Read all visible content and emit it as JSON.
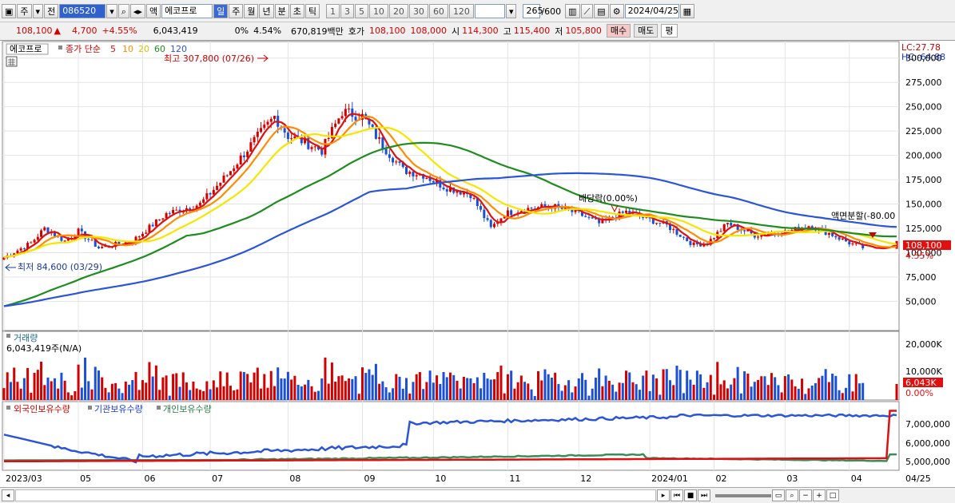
{
  "toolbar": {
    "period_select": "주",
    "prev_label": "전",
    "stock_code": "086520",
    "stock_label": "액",
    "stock_name": "에코프로",
    "period_buttons": [
      "일",
      "주",
      "월",
      "년",
      "분",
      "초",
      "틱"
    ],
    "interval_buttons": [
      "1",
      "3",
      "5",
      "10",
      "20",
      "30",
      "60",
      "120"
    ],
    "count": "265",
    "count_total": "/600",
    "date": "2024/04/25"
  },
  "info": {
    "price": "108,100",
    "change_arrow": "▲",
    "change": "4,700",
    "change_pct": "+4.55%",
    "volume": "6,043,419",
    "zero_pct": "0%",
    "turnover_pct": "4.54%",
    "amount": "670,819백만",
    "quote_label": "호가",
    "ask": "108,100",
    "bid": "108,000",
    "open_label": "시",
    "open": "114,300",
    "high_label": "고",
    "high": "115,400",
    "low_label": "저",
    "low": "105,800",
    "buy_label": "매수",
    "sell_label": "매도",
    "flat_label": "평"
  },
  "price_pane": {
    "legend_name": "에코프로",
    "legend_price": "종가 단순",
    "ma_labels": [
      "5",
      "10",
      "20",
      "60",
      "120"
    ],
    "high_annotation": "최고 307,800 (07/26)",
    "low_annotation": "최저 84,600 (03/29)",
    "dividend_annotation": "배당락(0.00%)",
    "split_annotation": "액면분할(-80.00",
    "lc": "LC:27.78",
    "hc": "HC:-64.88",
    "last_price_tag": "108,100",
    "last_pct_tag": "4.55%",
    "y_ticks": [
      "300,000",
      "275,000",
      "250,000",
      "225,000",
      "200,000",
      "175,000",
      "150,000",
      "125,000",
      "100,000",
      "75,000",
      "50,000"
    ]
  },
  "volume_pane": {
    "title": "거래량",
    "value": "6,043,419주(N/A)",
    "y_ticks": [
      "20,000K",
      "10,000K"
    ],
    "last_tag": "6,043K",
    "last_pct": "0.00%"
  },
  "holding_pane": {
    "legend": [
      "외국인보유수량",
      "기관보유수량",
      "개인보유수량"
    ],
    "y_ticks": [
      "7,000,000",
      "6,000,000",
      "5,000,000"
    ]
  },
  "x_axis": {
    "labels": [
      "2023/03",
      "05",
      "06",
      "07",
      "08",
      "09",
      "10",
      "11",
      "12",
      "2024/01",
      "02",
      "03",
      "04"
    ],
    "right_label": "04/25"
  },
  "colors": {
    "up": "#d40000",
    "down": "#1a4fd8",
    "ma5": "#e01010",
    "ma10": "#ff8c00",
    "ma20": "#f5e600",
    "ma60": "#1e8c1e",
    "ma120": "#2a55d8",
    "foreign": "#2a55d8",
    "institution": "#3a8c5a",
    "individual": "#e01010"
  }
}
